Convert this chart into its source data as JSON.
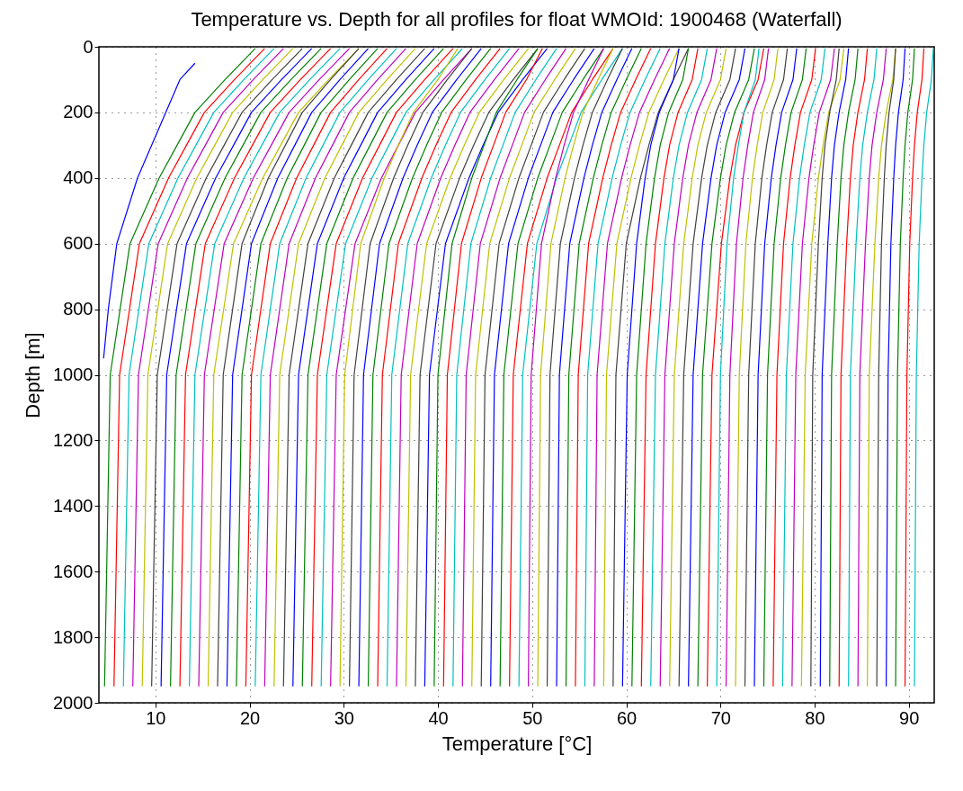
{
  "chart_data": {
    "type": "line",
    "title": "Temperature vs. Depth for all profiles for float WMOId: 1900468 (Waterfall)",
    "xlabel": "Temperature [°C]",
    "ylabel": "Depth [m]",
    "xlim": [
      4,
      92.7
    ],
    "ylim": [
      2000,
      0
    ],
    "xticks": [
      10,
      20,
      30,
      40,
      50,
      60,
      70,
      80,
      90
    ],
    "yticks": [
      0,
      200,
      400,
      600,
      800,
      1000,
      1200,
      1400,
      1600,
      1800,
      2000
    ],
    "grid": true,
    "line_style": "solid",
    "series": [
      {
        "color": "#0000ff",
        "x": [
          14.2,
          12.6,
          11.1,
          8.1,
          5.9,
          5.0,
          4.5
        ],
        "values": [
          50,
          100,
          200,
          400,
          600,
          800,
          950
        ]
      },
      {
        "color": "#008000",
        "x": [
          20.6,
          17.4,
          14.2,
          12.3,
          10.4,
          7.3,
          5.2,
          4.6
        ],
        "values": [
          5,
          100,
          200,
          300,
          400,
          600,
          1000,
          1950
        ]
      },
      {
        "color": "#ff0000",
        "x": [
          21.6,
          18.4,
          15.2,
          13.3,
          11.4,
          8.3,
          6.2,
          5.6
        ],
        "values": [
          5,
          100,
          200,
          300,
          400,
          600,
          1000,
          1950
        ]
      },
      {
        "color": "#00bfbf",
        "x": [
          22.6,
          19.4,
          16.2,
          14.3,
          12.4,
          9.3,
          7.2,
          6.6
        ],
        "values": [
          5,
          100,
          200,
          300,
          400,
          600,
          1000,
          1950
        ]
      },
      {
        "color": "#bf00bf",
        "x": [
          23.6,
          20.4,
          17.2,
          15.3,
          13.4,
          10.3,
          8.2,
          7.6
        ],
        "values": [
          5,
          100,
          200,
          300,
          400,
          600,
          1000,
          1950
        ]
      },
      {
        "color": "#bfbf00",
        "x": [
          24.6,
          21.4,
          18.2,
          16.3,
          14.4,
          11.3,
          9.2,
          8.6
        ],
        "values": [
          5,
          100,
          200,
          300,
          400,
          600,
          1000,
          1950
        ]
      },
      {
        "color": "#404040",
        "x": [
          25.6,
          22.4,
          19.2,
          17.3,
          15.4,
          12.3,
          10.2,
          9.6
        ],
        "values": [
          5,
          100,
          200,
          300,
          400,
          600,
          1000,
          1950
        ]
      },
      {
        "color": "#0000ff",
        "x": [
          26.6,
          23.4,
          20.2,
          18.3,
          16.4,
          13.3,
          11.2,
          10.6
        ],
        "values": [
          5,
          100,
          200,
          300,
          400,
          600,
          1000,
          1950
        ]
      },
      {
        "color": "#008000",
        "x": [
          27.6,
          24.4,
          21.2,
          19.3,
          17.4,
          14.3,
          12.2,
          11.6
        ],
        "values": [
          5,
          100,
          200,
          300,
          400,
          600,
          1000,
          1950
        ]
      },
      {
        "color": "#ff0000",
        "x": [
          28.6,
          25.4,
          22.2,
          20.3,
          18.4,
          15.3,
          13.2,
          12.6
        ],
        "values": [
          5,
          100,
          200,
          300,
          400,
          600,
          1000,
          1950
        ]
      },
      {
        "color": "#00bfbf",
        "x": [
          29.6,
          26.4,
          23.2,
          21.3,
          19.4,
          16.3,
          14.2,
          13.6
        ],
        "values": [
          5,
          100,
          200,
          300,
          400,
          600,
          1000,
          1950
        ]
      },
      {
        "color": "#bf00bf",
        "x": [
          30.6,
          27.4,
          24.2,
          22.3,
          20.4,
          17.3,
          15.2,
          14.6
        ],
        "values": [
          5,
          100,
          200,
          300,
          400,
          600,
          1000,
          1950
        ]
      },
      {
        "color": "#bfbf00",
        "x": [
          31.6,
          28.4,
          25.2,
          23.3,
          21.4,
          18.3,
          16.2,
          15.6
        ],
        "values": [
          5,
          100,
          200,
          300,
          400,
          600,
          1000,
          1950
        ]
      },
      {
        "color": "#404040",
        "x": [
          31.6,
          28.6,
          25.6,
          23.8,
          22,
          19.2,
          17.2,
          16.6
        ],
        "values": [
          5,
          100,
          200,
          300,
          400,
          600,
          1000,
          1950
        ]
      },
      {
        "color": "#0000ff",
        "x": [
          32.6,
          29.6,
          26.6,
          24.8,
          23,
          20.2,
          18.2,
          17.6
        ],
        "values": [
          5,
          100,
          200,
          300,
          400,
          600,
          1000,
          1950
        ]
      },
      {
        "color": "#008000",
        "x": [
          33.6,
          30.6,
          27.6,
          25.8,
          24,
          21.2,
          19.2,
          18.6
        ],
        "values": [
          5,
          100,
          200,
          300,
          400,
          600,
          1000,
          1950
        ]
      },
      {
        "color": "#ff0000",
        "x": [
          34.6,
          31.6,
          28.6,
          26.8,
          25,
          22.2,
          20.2,
          19.6
        ],
        "values": [
          5,
          100,
          200,
          300,
          400,
          600,
          1000,
          1950
        ]
      },
      {
        "color": "#00bfbf",
        "x": [
          35.6,
          32.6,
          29.6,
          27.8,
          26,
          23.2,
          21.2,
          20.6
        ],
        "values": [
          5,
          100,
          200,
          300,
          400,
          600,
          1000,
          1950
        ]
      },
      {
        "color": "#bf00bf",
        "x": [
          36.6,
          33.6,
          30.6,
          28.8,
          27,
          24.2,
          22.2,
          21.6
        ],
        "values": [
          5,
          100,
          200,
          300,
          400,
          600,
          1000,
          1950
        ]
      },
      {
        "color": "#bfbf00",
        "x": [
          37.6,
          34.6,
          31.6,
          29.8,
          28,
          25.2,
          23.2,
          22.6
        ],
        "values": [
          5,
          100,
          200,
          300,
          400,
          600,
          1000,
          1950
        ]
      },
      {
        "color": "#404040",
        "x": [
          38.6,
          35.6,
          32.6,
          30.8,
          29,
          26.2,
          24.2,
          23.6
        ],
        "values": [
          5,
          100,
          200,
          300,
          400,
          600,
          1000,
          1950
        ]
      },
      {
        "color": "#0000ff",
        "x": [
          39.6,
          36.6,
          33.6,
          31.8,
          30,
          27.2,
          25.2,
          24.6
        ],
        "values": [
          5,
          100,
          200,
          300,
          400,
          600,
          1000,
          1950
        ]
      },
      {
        "color": "#008000",
        "x": [
          40.6,
          37.6,
          34.6,
          32.8,
          31,
          28.2,
          26.2,
          25.6
        ],
        "values": [
          5,
          100,
          200,
          300,
          400,
          600,
          1000,
          1950
        ]
      },
      {
        "color": "#ff0000",
        "x": [
          41.6,
          38.6,
          35.6,
          33.8,
          32,
          29.2,
          27.2,
          26.6
        ],
        "values": [
          5,
          100,
          200,
          300,
          400,
          600,
          1000,
          1950
        ]
      },
      {
        "color": "#00bfbf",
        "x": [
          42.6,
          39.6,
          36.6,
          34.8,
          33,
          30.2,
          28.2,
          27.6
        ],
        "values": [
          5,
          100,
          200,
          300,
          400,
          600,
          1000,
          1950
        ]
      },
      {
        "color": "#bf00bf",
        "x": [
          43.6,
          40.6,
          37.6,
          35.8,
          34,
          31.2,
          29.2,
          28.6
        ],
        "values": [
          5,
          100,
          200,
          300,
          400,
          600,
          1000,
          1950
        ]
      },
      {
        "color": "#bfbf00",
        "x": [
          42.1,
          40,
          37.4,
          35.8,
          34.3,
          31.8,
          30.1,
          29.6
        ],
        "values": [
          5,
          100,
          200,
          300,
          400,
          600,
          1000,
          1950
        ]
      },
      {
        "color": "#404040",
        "x": [
          43.6,
          41,
          38.4,
          36.8,
          35.3,
          32.8,
          31.1,
          30.6
        ],
        "values": [
          5,
          100,
          200,
          300,
          400,
          600,
          1000,
          1950
        ]
      },
      {
        "color": "#0000ff",
        "x": [
          44.6,
          42,
          39.4,
          37.8,
          36.3,
          33.8,
          32.1,
          31.6
        ],
        "values": [
          5,
          100,
          200,
          300,
          400,
          600,
          1000,
          1950
        ]
      },
      {
        "color": "#008000",
        "x": [
          45.6,
          43,
          40.4,
          38.8,
          37.3,
          34.8,
          33.1,
          32.6
        ],
        "values": [
          5,
          100,
          200,
          300,
          400,
          600,
          1000,
          1950
        ]
      },
      {
        "color": "#ff0000",
        "x": [
          46.6,
          44,
          41.4,
          39.8,
          38.3,
          35.8,
          34.1,
          33.6
        ],
        "values": [
          5,
          100,
          200,
          300,
          400,
          600,
          1000,
          1950
        ]
      },
      {
        "color": "#00bfbf",
        "x": [
          47.6,
          45,
          42.4,
          40.8,
          39.3,
          36.8,
          35.1,
          34.6
        ],
        "values": [
          5,
          100,
          200,
          300,
          400,
          600,
          1000,
          1950
        ]
      },
      {
        "color": "#bf00bf",
        "x": [
          48.6,
          46,
          43.4,
          41.8,
          40.3,
          37.8,
          36.1,
          35.6
        ],
        "values": [
          5,
          100,
          200,
          300,
          400,
          600,
          1000,
          1950
        ]
      },
      {
        "color": "#bfbf00",
        "x": [
          49.6,
          47,
          44.4,
          42.8,
          41.3,
          38.8,
          37.1,
          36.6
        ],
        "values": [
          5,
          100,
          200,
          300,
          400,
          600,
          1000,
          1950
        ]
      },
      {
        "color": "#404040",
        "x": [
          50.6,
          48,
          45.4,
          43.8,
          42.3,
          39.8,
          38.1,
          37.6
        ],
        "values": [
          5,
          100,
          200,
          300,
          400,
          600,
          1000,
          1950
        ]
      },
      {
        "color": "#0000ff",
        "x": [
          51.6,
          49,
          46.4,
          44.8,
          43.3,
          40.8,
          39.1,
          38.6
        ],
        "values": [
          5,
          100,
          200,
          300,
          400,
          600,
          1000,
          1950
        ]
      },
      {
        "color": "#008000",
        "x": [
          50.6,
          48.4,
          46.2,
          44.9,
          43.6,
          41.5,
          40,
          39.6
        ],
        "values": [
          5,
          100,
          200,
          300,
          400,
          600,
          1000,
          1950
        ]
      },
      {
        "color": "#ff0000",
        "x": [
          51.1,
          49.4,
          47.2,
          45.9,
          44.6,
          42.5,
          41,
          40.6
        ],
        "values": [
          5,
          100,
          200,
          300,
          400,
          600,
          1000,
          1950
        ]
      },
      {
        "color": "#00bfbf",
        "x": [
          52.6,
          50.4,
          48.2,
          46.9,
          45.6,
          43.5,
          42,
          41.6
        ],
        "values": [
          5,
          100,
          200,
          300,
          400,
          600,
          1000,
          1950
        ]
      },
      {
        "color": "#bf00bf",
        "x": [
          53.6,
          51.4,
          49.2,
          47.9,
          46.6,
          44.5,
          43,
          42.6
        ],
        "values": [
          5,
          100,
          200,
          300,
          400,
          600,
          1000,
          1950
        ]
      },
      {
        "color": "#bfbf00",
        "x": [
          54.6,
          52.4,
          50.2,
          48.9,
          47.6,
          45.5,
          44,
          43.6
        ],
        "values": [
          5,
          100,
          200,
          300,
          400,
          600,
          1000,
          1950
        ]
      },
      {
        "color": "#404040",
        "x": [
          55.6,
          53.4,
          51.2,
          49.9,
          48.6,
          46.5,
          45,
          44.6
        ],
        "values": [
          5,
          100,
          200,
          300,
          400,
          600,
          1000,
          1950
        ]
      },
      {
        "color": "#0000ff",
        "x": [
          56.6,
          54.4,
          52.2,
          50.9,
          49.6,
          47.5,
          46,
          45.6
        ],
        "values": [
          5,
          100,
          200,
          300,
          400,
          600,
          1000,
          1950
        ]
      },
      {
        "color": "#008000",
        "x": [
          57.6,
          55.4,
          53.2,
          51.9,
          50.6,
          48.5,
          47,
          46.6
        ],
        "values": [
          5,
          100,
          200,
          300,
          400,
          600,
          1000,
          1950
        ]
      },
      {
        "color": "#ff0000",
        "x": [
          58.6,
          56.4,
          54.2,
          52.9,
          51.6,
          49.5,
          48,
          47.6
        ],
        "values": [
          5,
          100,
          200,
          300,
          400,
          600,
          1000,
          1950
        ]
      },
      {
        "color": "#00bfbf",
        "x": [
          59.6,
          57.4,
          55.2,
          53.9,
          52.6,
          50.5,
          49,
          48.6
        ],
        "values": [
          5,
          100,
          200,
          300,
          400,
          600,
          1000,
          1950
        ]
      },
      {
        "color": "#bf00bf",
        "x": [
          57.6,
          56,
          54.4,
          53.4,
          52.5,
          51,
          49.9,
          49.6
        ],
        "values": [
          5,
          100,
          200,
          300,
          400,
          600,
          1000,
          1950
        ]
      },
      {
        "color": "#bfbf00",
        "x": [
          58.6,
          57,
          55.4,
          54.4,
          53.5,
          52,
          50.9,
          50.6
        ],
        "values": [
          5,
          100,
          200,
          300,
          400,
          600,
          1000,
          1950
        ]
      },
      {
        "color": "#404040",
        "x": [
          59.6,
          58,
          56.4,
          55.4,
          54.5,
          53,
          51.9,
          51.6
        ],
        "values": [
          5,
          100,
          200,
          300,
          400,
          600,
          1000,
          1950
        ]
      },
      {
        "color": "#0000ff",
        "x": [
          60.6,
          59,
          57.4,
          56.4,
          55.5,
          54,
          52.9,
          52.6
        ],
        "values": [
          5,
          100,
          200,
          300,
          400,
          600,
          1000,
          1950
        ]
      },
      {
        "color": "#008000",
        "x": [
          61.6,
          60,
          58.4,
          57.4,
          56.5,
          55,
          53.9,
          53.6
        ],
        "values": [
          5,
          100,
          200,
          300,
          400,
          600,
          1000,
          1950
        ]
      },
      {
        "color": "#ff0000",
        "x": [
          62.6,
          61,
          59.4,
          58.4,
          57.5,
          56,
          54.9,
          54.6
        ],
        "values": [
          5,
          100,
          200,
          300,
          400,
          600,
          1000,
          1950
        ]
      },
      {
        "color": "#00bfbf",
        "x": [
          63.6,
          62,
          60.4,
          59.4,
          58.5,
          57,
          55.9,
          55.6
        ],
        "values": [
          5,
          100,
          200,
          300,
          400,
          600,
          1000,
          1950
        ]
      },
      {
        "color": "#bf00bf",
        "x": [
          64.6,
          63,
          61.4,
          60.4,
          59.5,
          58,
          56.9,
          56.6
        ],
        "values": [
          5,
          100,
          200,
          300,
          400,
          600,
          1000,
          1950
        ]
      },
      {
        "color": "#bfbf00",
        "x": [
          65.6,
          64,
          62.4,
          61.4,
          60.5,
          59,
          57.9,
          57.6
        ],
        "values": [
          5,
          100,
          200,
          300,
          400,
          600,
          1000,
          1950
        ]
      },
      {
        "color": "#404040",
        "x": [
          66.6,
          65,
          63.4,
          62.4,
          61.5,
          60,
          58.9,
          58.6
        ],
        "values": [
          5,
          100,
          200,
          300,
          400,
          600,
          1000,
          1950
        ]
      },
      {
        "color": "#0000ff",
        "x": [
          65.6,
          65,
          63.5,
          62.6,
          62,
          61.1,
          60.1,
          59.6
        ],
        "values": [
          5,
          100,
          200,
          300,
          400,
          600,
          1000,
          1950
        ]
      },
      {
        "color": "#008000",
        "x": [
          66.6,
          66,
          64.5,
          63.6,
          63,
          62.1,
          61.1,
          60.6
        ],
        "values": [
          5,
          100,
          200,
          300,
          400,
          600,
          1000,
          1950
        ]
      },
      {
        "color": "#ff0000",
        "x": [
          67.6,
          67,
          65.5,
          64.6,
          64,
          63.1,
          62.1,
          61.6
        ],
        "values": [
          5,
          100,
          200,
          300,
          400,
          600,
          1000,
          1950
        ]
      },
      {
        "color": "#00bfbf",
        "x": [
          68.6,
          68,
          66.5,
          65.6,
          65,
          64.1,
          63.1,
          62.6
        ],
        "values": [
          5,
          100,
          200,
          300,
          400,
          600,
          1000,
          1950
        ]
      },
      {
        "color": "#bf00bf",
        "x": [
          69.6,
          69,
          67.5,
          66.6,
          66,
          65.1,
          64.1,
          63.6
        ],
        "values": [
          5,
          100,
          200,
          300,
          400,
          600,
          1000,
          1950
        ]
      },
      {
        "color": "#bfbf00",
        "x": [
          70.6,
          70,
          68.5,
          67.6,
          67,
          66.1,
          65.1,
          64.6
        ],
        "values": [
          5,
          100,
          200,
          300,
          400,
          600,
          1000,
          1950
        ]
      },
      {
        "color": "#404040",
        "x": [
          71.6,
          71,
          69.5,
          68.6,
          68,
          67.1,
          66.1,
          65.6
        ],
        "values": [
          5,
          100,
          200,
          300,
          400,
          600,
          1000,
          1950
        ]
      },
      {
        "color": "#0000ff",
        "x": [
          72.6,
          72,
          70.5,
          69.6,
          69,
          68.1,
          67.1,
          66.6
        ],
        "values": [
          5,
          100,
          200,
          300,
          400,
          600,
          1000,
          1950
        ]
      },
      {
        "color": "#008000",
        "x": [
          73.6,
          73,
          71.5,
          70.6,
          70,
          69.1,
          68.1,
          67.6
        ],
        "values": [
          5,
          100,
          200,
          300,
          400,
          600,
          1000,
          1950
        ]
      },
      {
        "color": "#ff0000",
        "x": [
          74.6,
          74,
          72.5,
          71.6,
          71,
          70.1,
          69.1,
          68.6
        ],
        "values": [
          5,
          100,
          200,
          300,
          400,
          600,
          1000,
          1950
        ]
      },
      {
        "color": "#00bfbf",
        "x": [
          74.1,
          73.7,
          72.5,
          71.9,
          71.4,
          70.7,
          70,
          69.6
        ],
        "values": [
          5,
          100,
          200,
          300,
          400,
          600,
          1000,
          1950
        ]
      },
      {
        "color": "#bf00bf",
        "x": [
          75.1,
          74.7,
          73.5,
          72.9,
          72.4,
          71.7,
          71,
          70.6
        ],
        "values": [
          5,
          100,
          200,
          300,
          400,
          600,
          1000,
          1950
        ]
      },
      {
        "color": "#bfbf00",
        "x": [
          76.1,
          75.7,
          74.5,
          73.9,
          73.4,
          72.7,
          72,
          71.6
        ],
        "values": [
          5,
          100,
          200,
          300,
          400,
          600,
          1000,
          1950
        ]
      },
      {
        "color": "#404040",
        "x": [
          77.1,
          76.7,
          75.5,
          74.9,
          74.4,
          73.7,
          73,
          72.6
        ],
        "values": [
          5,
          100,
          200,
          300,
          400,
          600,
          1000,
          1950
        ]
      },
      {
        "color": "#0000ff",
        "x": [
          78.1,
          77.7,
          76.5,
          75.9,
          75.4,
          74.7,
          74,
          73.6
        ],
        "values": [
          5,
          100,
          200,
          300,
          400,
          600,
          1000,
          1950
        ]
      },
      {
        "color": "#008000",
        "x": [
          79.1,
          78.7,
          77.5,
          76.9,
          76.4,
          75.7,
          75,
          74.6
        ],
        "values": [
          5,
          100,
          200,
          300,
          400,
          600,
          1000,
          1950
        ]
      },
      {
        "color": "#ff0000",
        "x": [
          80.1,
          79.7,
          78.5,
          77.9,
          77.4,
          76.7,
          76,
          75.6
        ],
        "values": [
          5,
          100,
          200,
          300,
          400,
          600,
          1000,
          1950
        ]
      },
      {
        "color": "#00bfbf",
        "x": [
          81.1,
          80.7,
          79.5,
          78.9,
          78.4,
          77.7,
          77,
          76.6
        ],
        "values": [
          5,
          100,
          200,
          300,
          400,
          600,
          1000,
          1950
        ]
      },
      {
        "color": "#bf00bf",
        "x": [
          82.1,
          81.7,
          80.5,
          79.9,
          79.4,
          78.7,
          78,
          77.6
        ],
        "values": [
          5,
          100,
          200,
          300,
          400,
          600,
          1000,
          1950
        ]
      },
      {
        "color": "#bfbf00",
        "x": [
          83.1,
          82.7,
          81.5,
          80.9,
          80.4,
          79.7,
          79,
          78.6
        ],
        "values": [
          5,
          100,
          200,
          300,
          400,
          600,
          1000,
          1950
        ]
      },
      {
        "color": "#404040",
        "x": [
          82.6,
          82.3,
          81.6,
          81.1,
          80.8,
          80.4,
          79.8,
          79.6
        ],
        "values": [
          5,
          100,
          200,
          300,
          400,
          600,
          1000,
          1950
        ]
      },
      {
        "color": "#0000ff",
        "x": [
          83.6,
          83.3,
          82.6,
          82.1,
          81.8,
          81.4,
          80.8,
          80.6
        ],
        "values": [
          5,
          100,
          200,
          300,
          400,
          600,
          1000,
          1950
        ]
      },
      {
        "color": "#008000",
        "x": [
          84.6,
          84.3,
          83.6,
          83.1,
          82.8,
          82.4,
          81.8,
          81.6
        ],
        "values": [
          5,
          100,
          200,
          300,
          400,
          600,
          1000,
          1950
        ]
      },
      {
        "color": "#ff0000",
        "x": [
          85.6,
          85.3,
          84.6,
          84.1,
          83.8,
          83.4,
          82.8,
          82.6
        ],
        "values": [
          5,
          100,
          200,
          300,
          400,
          600,
          1000,
          1950
        ]
      },
      {
        "color": "#00bfbf",
        "x": [
          86.6,
          86.3,
          85.6,
          85.1,
          84.8,
          84.4,
          83.8,
          83.6
        ],
        "values": [
          5,
          100,
          200,
          300,
          400,
          600,
          1000,
          1950
        ]
      },
      {
        "color": "#bf00bf",
        "x": [
          87.6,
          87.3,
          86.6,
          86.1,
          85.8,
          85.4,
          84.8,
          84.6
        ],
        "values": [
          5,
          100,
          200,
          300,
          400,
          600,
          1000,
          1950
        ]
      },
      {
        "color": "#bfbf00",
        "x": [
          88.6,
          88.3,
          87.6,
          87.1,
          86.8,
          86.4,
          85.8,
          85.6
        ],
        "values": [
          5,
          100,
          200,
          300,
          400,
          600,
          1000,
          1950
        ]
      },
      {
        "color": "#404040",
        "x": [
          88.6,
          88.4,
          87.9,
          87.6,
          87.4,
          87.1,
          86.8,
          86.6
        ],
        "values": [
          5,
          100,
          200,
          300,
          400,
          600,
          1000,
          1950
        ]
      },
      {
        "color": "#0000ff",
        "x": [
          89.6,
          89.4,
          88.9,
          88.6,
          88.4,
          88.1,
          87.8,
          87.6
        ],
        "values": [
          5,
          100,
          200,
          300,
          400,
          600,
          1000,
          1950
        ]
      },
      {
        "color": "#008000",
        "x": [
          90.6,
          90.4,
          89.9,
          89.6,
          89.4,
          89.1,
          88.8,
          88.6
        ],
        "values": [
          5,
          100,
          200,
          300,
          400,
          600,
          1000,
          1950
        ]
      },
      {
        "color": "#ff0000",
        "x": [
          91.6,
          91.4,
          90.9,
          90.6,
          90.4,
          90.1,
          89.8,
          89.6
        ],
        "values": [
          5,
          100,
          200,
          300,
          400,
          600,
          1000,
          1950
        ]
      },
      {
        "color": "#00bfbf",
        "x": [
          92.6,
          92.4,
          91.9,
          91.6,
          91.4,
          91.1,
          90.8,
          90.6
        ],
        "values": [
          5,
          100,
          200,
          300,
          400,
          600,
          1000,
          1950
        ]
      }
    ]
  }
}
